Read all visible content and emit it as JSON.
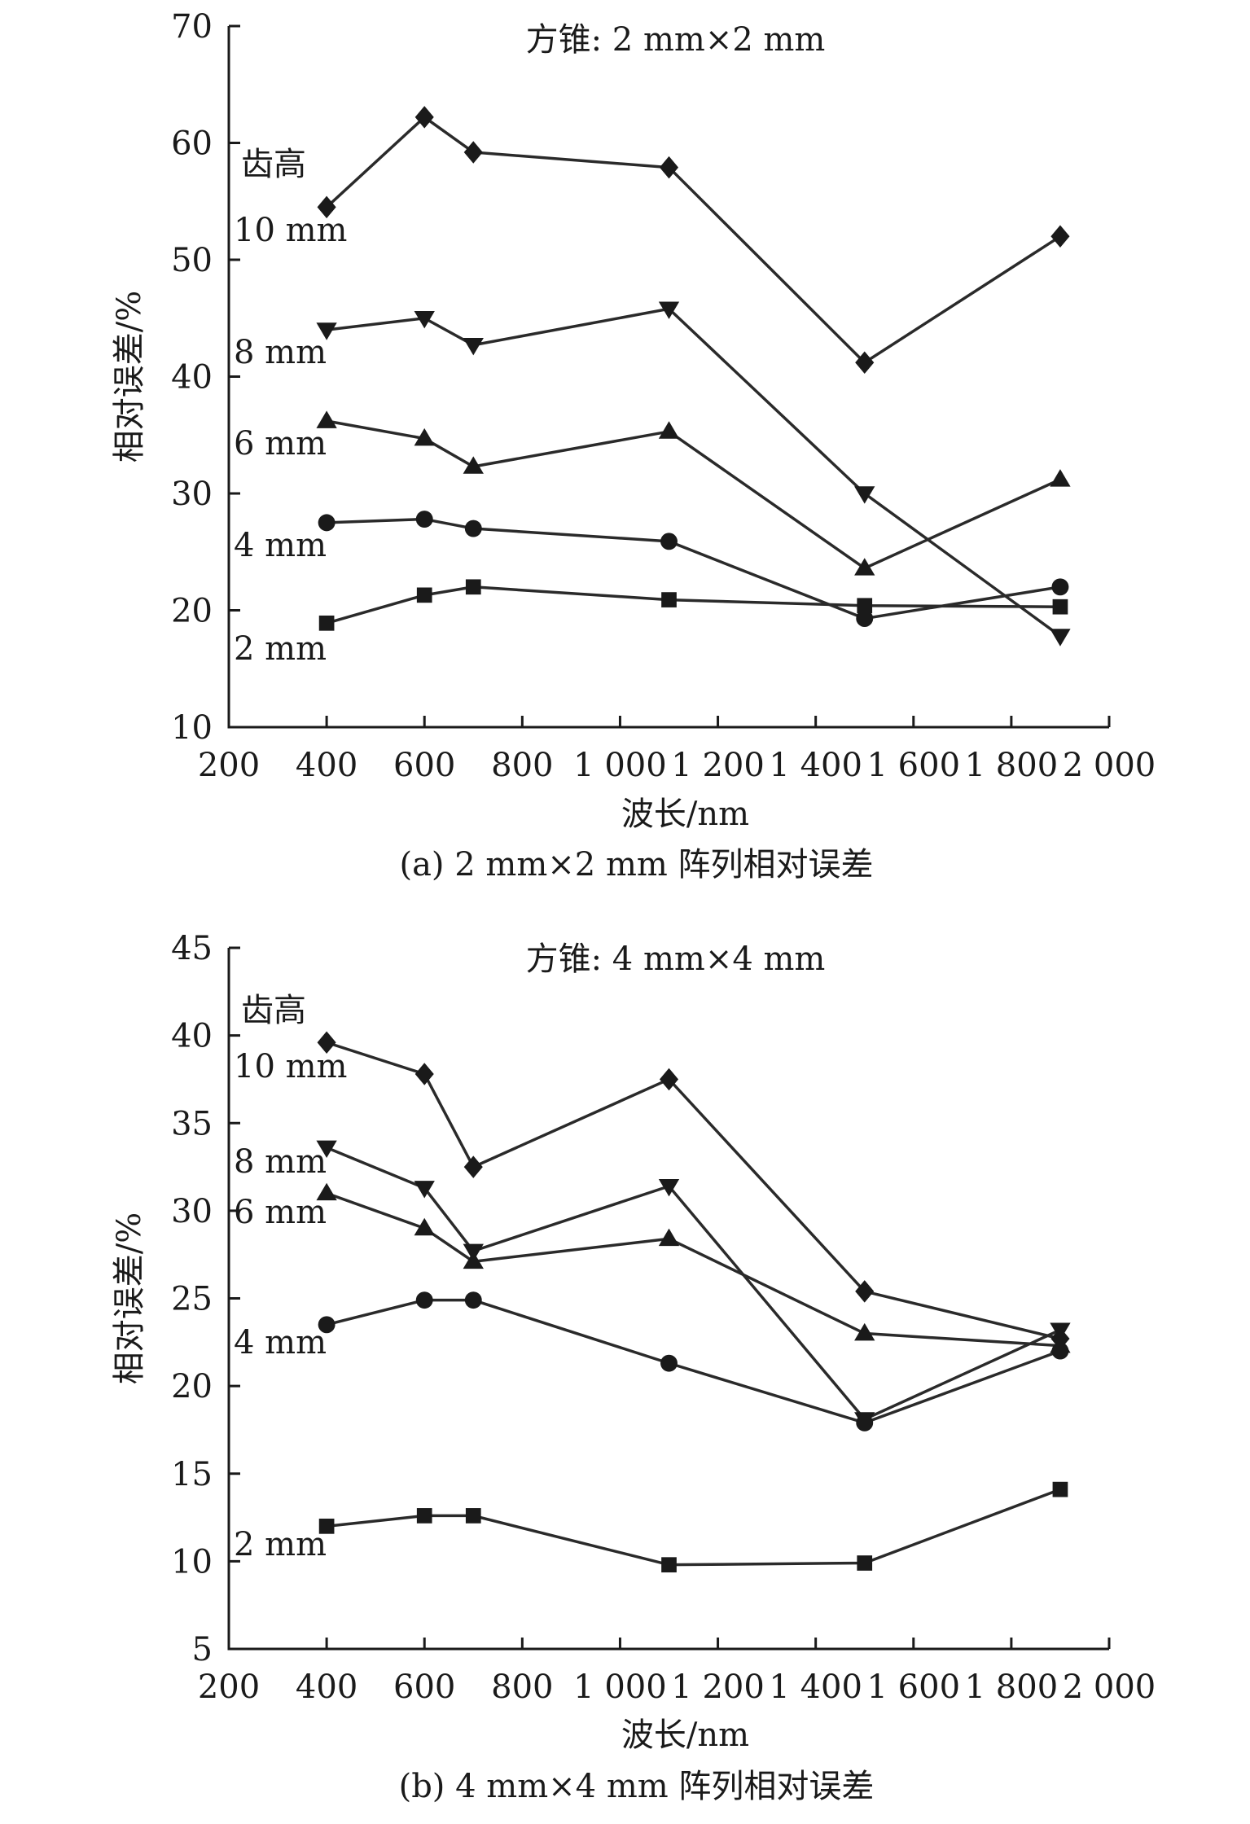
{
  "chart_data": [
    {
      "type": "line",
      "panel_id": "a",
      "inset_title": "方锥: 2 mm×2 mm",
      "caption": "(a) 2 mm×2 mm 阵列相对误差",
      "xlabel": "波长/nm",
      "ylabel": "相对误差/%",
      "xlim": [
        200,
        2000
      ],
      "ylim": [
        10,
        70
      ],
      "xticks": [
        200,
        400,
        600,
        800,
        1000,
        1200,
        1400,
        1600,
        1800,
        2000
      ],
      "xtick_labels": [
        "200",
        "400",
        "600",
        "800",
        "1 000",
        "1 200",
        "1 400",
        "1 600",
        "1 800",
        "2 000"
      ],
      "yticks": [
        10,
        20,
        30,
        40,
        50,
        60,
        70
      ],
      "ytick_labels": [
        "10",
        "20",
        "30",
        "40",
        "50",
        "60",
        "70"
      ],
      "legend_title": "齿高",
      "x": [
        400,
        600,
        700,
        1100,
        1500,
        1900
      ],
      "series": [
        {
          "name": "10 mm",
          "marker": "diamond",
          "values": [
            54.5,
            62.2,
            59.2,
            57.9,
            41.2,
            52.0
          ]
        },
        {
          "name": "8 mm",
          "marker": "triangle-down",
          "values": [
            44.0,
            45.0,
            42.7,
            45.8,
            30.0,
            17.8
          ]
        },
        {
          "name": "6 mm",
          "marker": "triangle-up",
          "values": [
            36.2,
            34.7,
            32.3,
            35.3,
            23.6,
            31.2
          ]
        },
        {
          "name": "4 mm",
          "marker": "circle",
          "values": [
            27.5,
            27.8,
            27.0,
            25.9,
            19.3,
            22.0
          ]
        },
        {
          "name": "2 mm",
          "marker": "square",
          "values": [
            18.9,
            21.3,
            22.0,
            20.9,
            20.4,
            20.3
          ]
        }
      ]
    },
    {
      "type": "line",
      "panel_id": "b",
      "inset_title": "方锥: 4 mm×4 mm",
      "caption": "(b) 4 mm×4 mm 阵列相对误差",
      "xlabel": "波长/nm",
      "ylabel": "相对误差/%",
      "xlim": [
        200,
        2000
      ],
      "ylim": [
        5,
        45
      ],
      "xticks": [
        200,
        400,
        600,
        800,
        1000,
        1200,
        1400,
        1600,
        1800,
        2000
      ],
      "xtick_labels": [
        "200",
        "400",
        "600",
        "800",
        "1 000",
        "1 200",
        "1 400",
        "1 600",
        "1 800",
        "2 000"
      ],
      "yticks": [
        5,
        10,
        15,
        20,
        25,
        30,
        35,
        40,
        45
      ],
      "ytick_labels": [
        "5",
        "10",
        "15",
        "20",
        "25",
        "30",
        "35",
        "40",
        "45"
      ],
      "legend_title": "齿高",
      "x": [
        400,
        600,
        700,
        1100,
        1500,
        1900
      ],
      "series": [
        {
          "name": "10 mm",
          "marker": "diamond",
          "values": [
            39.6,
            37.8,
            32.5,
            37.5,
            25.4,
            22.7
          ]
        },
        {
          "name": "8 mm",
          "marker": "triangle-down",
          "values": [
            33.6,
            31.3,
            27.7,
            31.4,
            18.1,
            23.2
          ]
        },
        {
          "name": "6 mm",
          "marker": "triangle-up",
          "values": [
            31.0,
            29.0,
            27.1,
            28.4,
            23.0,
            22.3
          ]
        },
        {
          "name": "4 mm",
          "marker": "circle",
          "values": [
            23.5,
            24.9,
            24.9,
            21.3,
            17.9,
            22.0
          ]
        },
        {
          "name": "2 mm",
          "marker": "square",
          "values": [
            12.0,
            12.6,
            12.6,
            9.8,
            9.9,
            14.1
          ]
        }
      ]
    }
  ]
}
